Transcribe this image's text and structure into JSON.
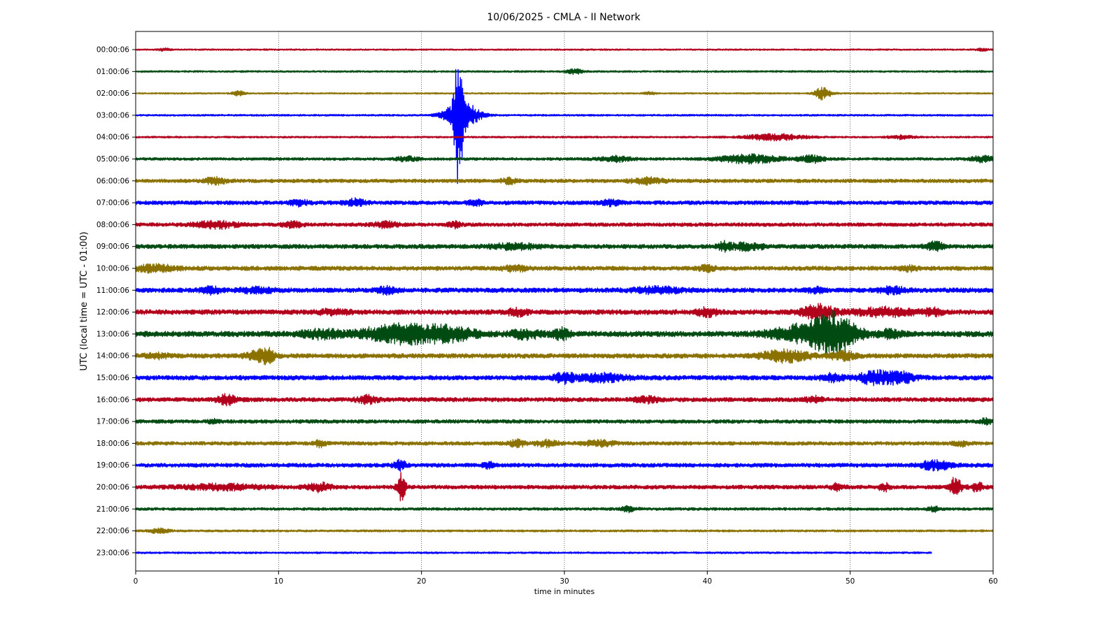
{
  "chart_data": {
    "type": "line",
    "title": "10/06/2025 - CMLA - II Network",
    "xlabel": "time in minutes",
    "ylabel": "UTC (local time = UTC - 01:00)",
    "xlim": [
      0,
      60
    ],
    "x_ticks": [
      "0",
      "10",
      "20",
      "30",
      "40",
      "50",
      "60"
    ],
    "grid": "vertical-dotted",
    "colors": [
      "#b2001c",
      "#004b11",
      "#8a7100",
      "#0000ff"
    ],
    "rows": [
      {
        "label": "00:00:06",
        "base": 0.5,
        "end": 60,
        "events": [
          [
            2.0,
            0.8,
            0.3
          ],
          [
            59.2,
            0.8,
            0.3
          ]
        ]
      },
      {
        "label": "01:00:06",
        "base": 0.6,
        "end": 60,
        "events": [
          [
            30.7,
            1.6,
            0.4
          ]
        ]
      },
      {
        "label": "02:00:06",
        "base": 0.5,
        "end": 60,
        "events": [
          [
            7.2,
            1.5,
            0.3
          ],
          [
            36.0,
            0.8,
            0.3
          ],
          [
            48.1,
            4.0,
            0.4
          ]
        ]
      },
      {
        "label": "03:00:06",
        "base": 0.6,
        "end": 60,
        "events": [
          [
            22.6,
            40.0,
            0.2
          ],
          [
            22.8,
            10.0,
            0.8
          ]
        ]
      },
      {
        "label": "04:00:06",
        "base": 0.6,
        "end": 60,
        "events": [
          [
            44.7,
            2.0,
            1.5
          ],
          [
            53.6,
            1.2,
            0.6
          ]
        ]
      },
      {
        "label": "05:00:06",
        "base": 0.9,
        "end": 60,
        "events": [
          [
            19.0,
            1.3,
            0.6
          ],
          [
            33.5,
            1.6,
            0.8
          ],
          [
            43.0,
            2.6,
            1.5
          ],
          [
            47.3,
            2.2,
            0.6
          ],
          [
            59.3,
            1.8,
            0.6
          ]
        ]
      },
      {
        "label": "06:00:06",
        "base": 1.2,
        "end": 60,
        "events": [
          [
            5.6,
            2.4,
            0.5
          ],
          [
            26.2,
            1.6,
            0.4
          ],
          [
            35.8,
            1.8,
            0.8
          ]
        ]
      },
      {
        "label": "07:00:06",
        "base": 1.3,
        "end": 60,
        "events": [
          [
            11.4,
            1.6,
            0.5
          ],
          [
            15.3,
            2.2,
            0.5
          ],
          [
            23.8,
            1.4,
            0.4
          ],
          [
            33.2,
            1.8,
            0.5
          ]
        ]
      },
      {
        "label": "08:00:06",
        "base": 1.2,
        "end": 60,
        "events": [
          [
            5.6,
            2.2,
            1.0
          ],
          [
            11.0,
            1.6,
            0.5
          ],
          [
            17.5,
            1.8,
            0.6
          ],
          [
            22.3,
            1.8,
            0.3
          ]
        ]
      },
      {
        "label": "09:00:06",
        "base": 1.4,
        "end": 60,
        "events": [
          [
            26.5,
            1.6,
            1.2
          ],
          [
            41.2,
            2.5,
            0.3
          ],
          [
            42.8,
            2.0,
            0.8
          ],
          [
            55.9,
            3.0,
            0.4
          ]
        ]
      },
      {
        "label": "10:00:06",
        "base": 1.4,
        "end": 60,
        "events": [
          [
            1.3,
            2.0,
            1.0
          ],
          [
            26.5,
            1.6,
            0.6
          ],
          [
            40.0,
            1.6,
            0.4
          ],
          [
            54.0,
            1.4,
            0.5
          ]
        ]
      },
      {
        "label": "11:00:06",
        "base": 1.5,
        "end": 60,
        "events": [
          [
            5.3,
            1.8,
            0.5
          ],
          [
            8.5,
            1.6,
            0.8
          ],
          [
            17.6,
            1.8,
            0.5
          ],
          [
            36.6,
            1.8,
            1.2
          ],
          [
            47.6,
            1.4,
            0.5
          ],
          [
            53.0,
            2.0,
            0.6
          ]
        ]
      },
      {
        "label": "12:00:06",
        "base": 1.6,
        "end": 60,
        "events": [
          [
            13.8,
            1.4,
            0.8
          ],
          [
            26.7,
            2.0,
            0.5
          ],
          [
            40.0,
            2.4,
            0.5
          ],
          [
            47.8,
            4.5,
            0.8
          ],
          [
            52.5,
            2.4,
            1.5
          ],
          [
            55.8,
            2.2,
            0.4
          ]
        ]
      },
      {
        "label": "13:00:06",
        "base": 1.8,
        "end": 60,
        "events": [
          [
            13.0,
            2.4,
            1.0
          ],
          [
            17.5,
            3.2,
            1.5
          ],
          [
            19.7,
            4.0,
            1.8
          ],
          [
            22.2,
            3.0,
            1.2
          ],
          [
            27.3,
            2.5,
            0.8
          ],
          [
            29.8,
            3.0,
            0.4
          ],
          [
            47.2,
            6.0,
            1.8
          ],
          [
            49.0,
            10.0,
            1.0
          ],
          [
            52.8,
            2.2,
            0.6
          ]
        ]
      },
      {
        "label": "14:00:06",
        "base": 1.5,
        "end": 60,
        "events": [
          [
            1.5,
            1.4,
            0.6
          ],
          [
            8.6,
            3.0,
            0.6
          ],
          [
            9.3,
            3.2,
            0.3
          ],
          [
            45.5,
            3.5,
            1.2
          ],
          [
            49.5,
            2.6,
            0.6
          ]
        ]
      },
      {
        "label": "15:00:06",
        "base": 1.5,
        "end": 60,
        "events": [
          [
            30.0,
            2.8,
            0.5
          ],
          [
            32.6,
            2.2,
            1.2
          ],
          [
            48.7,
            2.2,
            0.6
          ],
          [
            51.6,
            4.0,
            0.7
          ],
          [
            53.4,
            3.4,
            0.8
          ]
        ]
      },
      {
        "label": "16:00:06",
        "base": 1.4,
        "end": 60,
        "events": [
          [
            6.4,
            2.8,
            0.5
          ],
          [
            16.2,
            2.2,
            0.5
          ],
          [
            35.8,
            1.6,
            0.6
          ],
          [
            47.5,
            1.6,
            0.4
          ]
        ]
      },
      {
        "label": "17:00:06",
        "base": 1.2,
        "end": 60,
        "events": [
          [
            5.5,
            1.4,
            0.3
          ],
          [
            59.5,
            1.6,
            0.3
          ]
        ]
      },
      {
        "label": "18:00:06",
        "base": 1.2,
        "end": 60,
        "events": [
          [
            12.9,
            1.8,
            0.3
          ],
          [
            26.7,
            2.0,
            0.4
          ],
          [
            28.8,
            2.0,
            0.5
          ],
          [
            32.5,
            1.6,
            0.8
          ],
          [
            57.8,
            1.4,
            0.4
          ]
        ]
      },
      {
        "label": "19:00:06",
        "base": 1.3,
        "end": 60,
        "events": [
          [
            18.5,
            2.8,
            0.3
          ],
          [
            24.7,
            1.8,
            0.3
          ],
          [
            56.0,
            2.6,
            0.8
          ]
        ]
      },
      {
        "label": "20:00:06",
        "base": 1.3,
        "end": 60,
        "events": [
          [
            6.0,
            1.5,
            2.0
          ],
          [
            12.8,
            2.5,
            0.6
          ],
          [
            18.6,
            9.0,
            0.2
          ],
          [
            49.1,
            2.0,
            0.3
          ],
          [
            52.4,
            2.2,
            0.3
          ],
          [
            57.4,
            7.0,
            0.25
          ],
          [
            58.9,
            2.6,
            0.3
          ]
        ]
      },
      {
        "label": "21:00:06",
        "base": 0.9,
        "end": 60,
        "events": [
          [
            34.5,
            1.6,
            0.4
          ],
          [
            55.9,
            1.4,
            0.3
          ]
        ]
      },
      {
        "label": "22:00:06",
        "base": 0.7,
        "end": 60,
        "events": [
          [
            1.6,
            1.4,
            0.5
          ]
        ]
      },
      {
        "label": "23:00:06",
        "base": 0.6,
        "end": 55.7,
        "events": []
      }
    ]
  }
}
